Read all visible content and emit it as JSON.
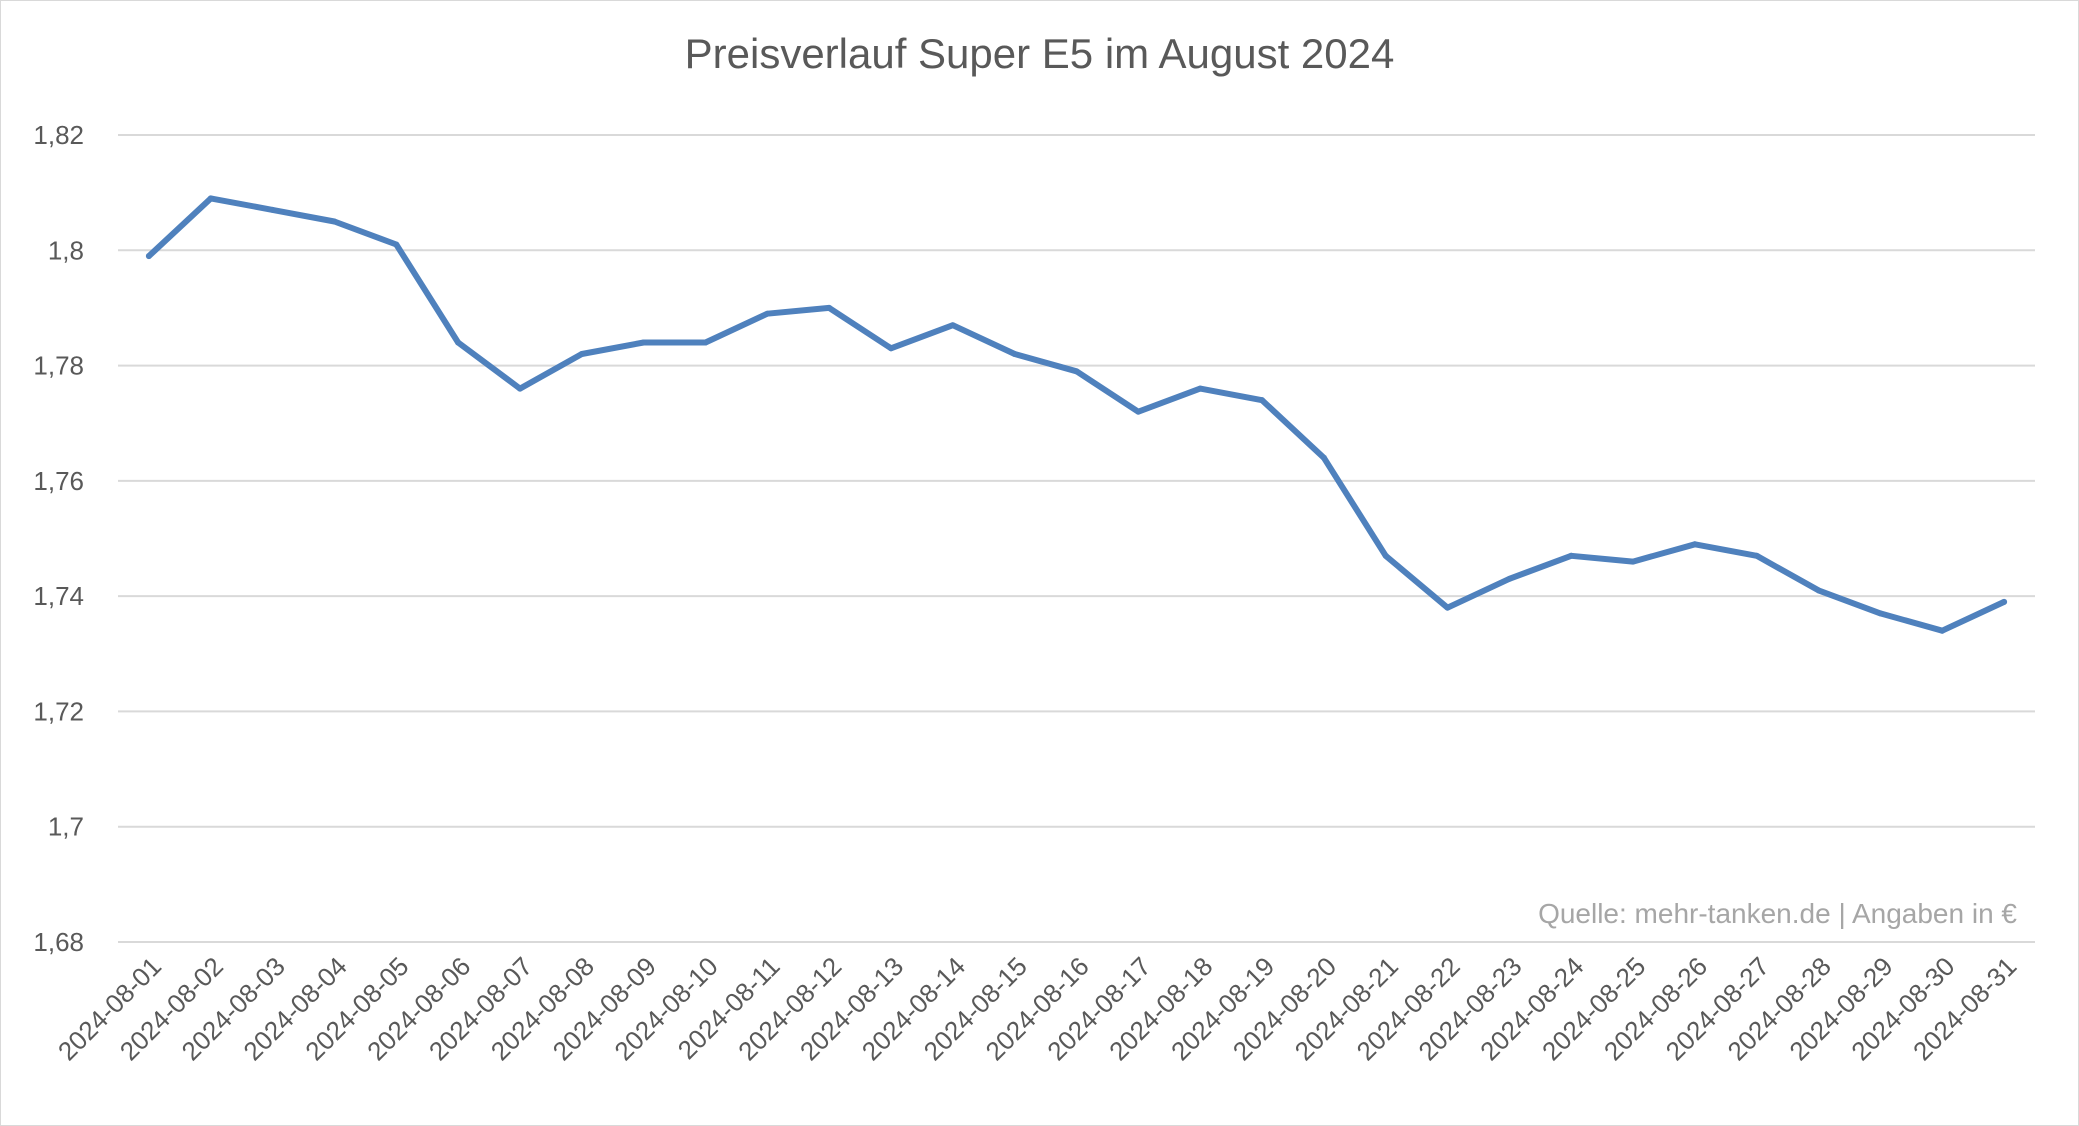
{
  "chart_data": {
    "type": "line",
    "title": "Preisverlauf Super E5 im August 2024",
    "note": "Quelle: mehr-tanken.de | Angaben in €",
    "xlabel": "",
    "ylabel": "",
    "ylim": [
      1.68,
      1.82
    ],
    "yticks": [
      1.68,
      1.7,
      1.72,
      1.74,
      1.76,
      1.78,
      1.8,
      1.82
    ],
    "ytick_labels": [
      "1,68",
      "1,7",
      "1,72",
      "1,74",
      "1,76",
      "1,78",
      "1,8",
      "1,82"
    ],
    "grid": true,
    "legend": "none",
    "color": "#4f81bd",
    "x": [
      "2024-08-01",
      "2024-08-02",
      "2024-08-03",
      "2024-08-04",
      "2024-08-05",
      "2024-08-06",
      "2024-08-07",
      "2024-08-08",
      "2024-08-09",
      "2024-08-10",
      "2024-08-11",
      "2024-08-12",
      "2024-08-13",
      "2024-08-14",
      "2024-08-15",
      "2024-08-16",
      "2024-08-17",
      "2024-08-18",
      "2024-08-19",
      "2024-08-20",
      "2024-08-21",
      "2024-08-22",
      "2024-08-23",
      "2024-08-24",
      "2024-08-25",
      "2024-08-26",
      "2024-08-27",
      "2024-08-28",
      "2024-08-29",
      "2024-08-30",
      "2024-08-31"
    ],
    "series": [
      {
        "values": [
          1.799,
          1.809,
          1.807,
          1.805,
          1.801,
          1.784,
          1.776,
          1.782,
          1.784,
          1.784,
          1.789,
          1.79,
          1.783,
          1.787,
          1.782,
          1.779,
          1.772,
          1.776,
          1.774,
          1.764,
          1.747,
          1.738,
          1.743,
          1.747,
          1.746,
          1.749,
          1.747,
          1.741,
          1.737,
          1.734,
          1.739
        ]
      }
    ]
  }
}
